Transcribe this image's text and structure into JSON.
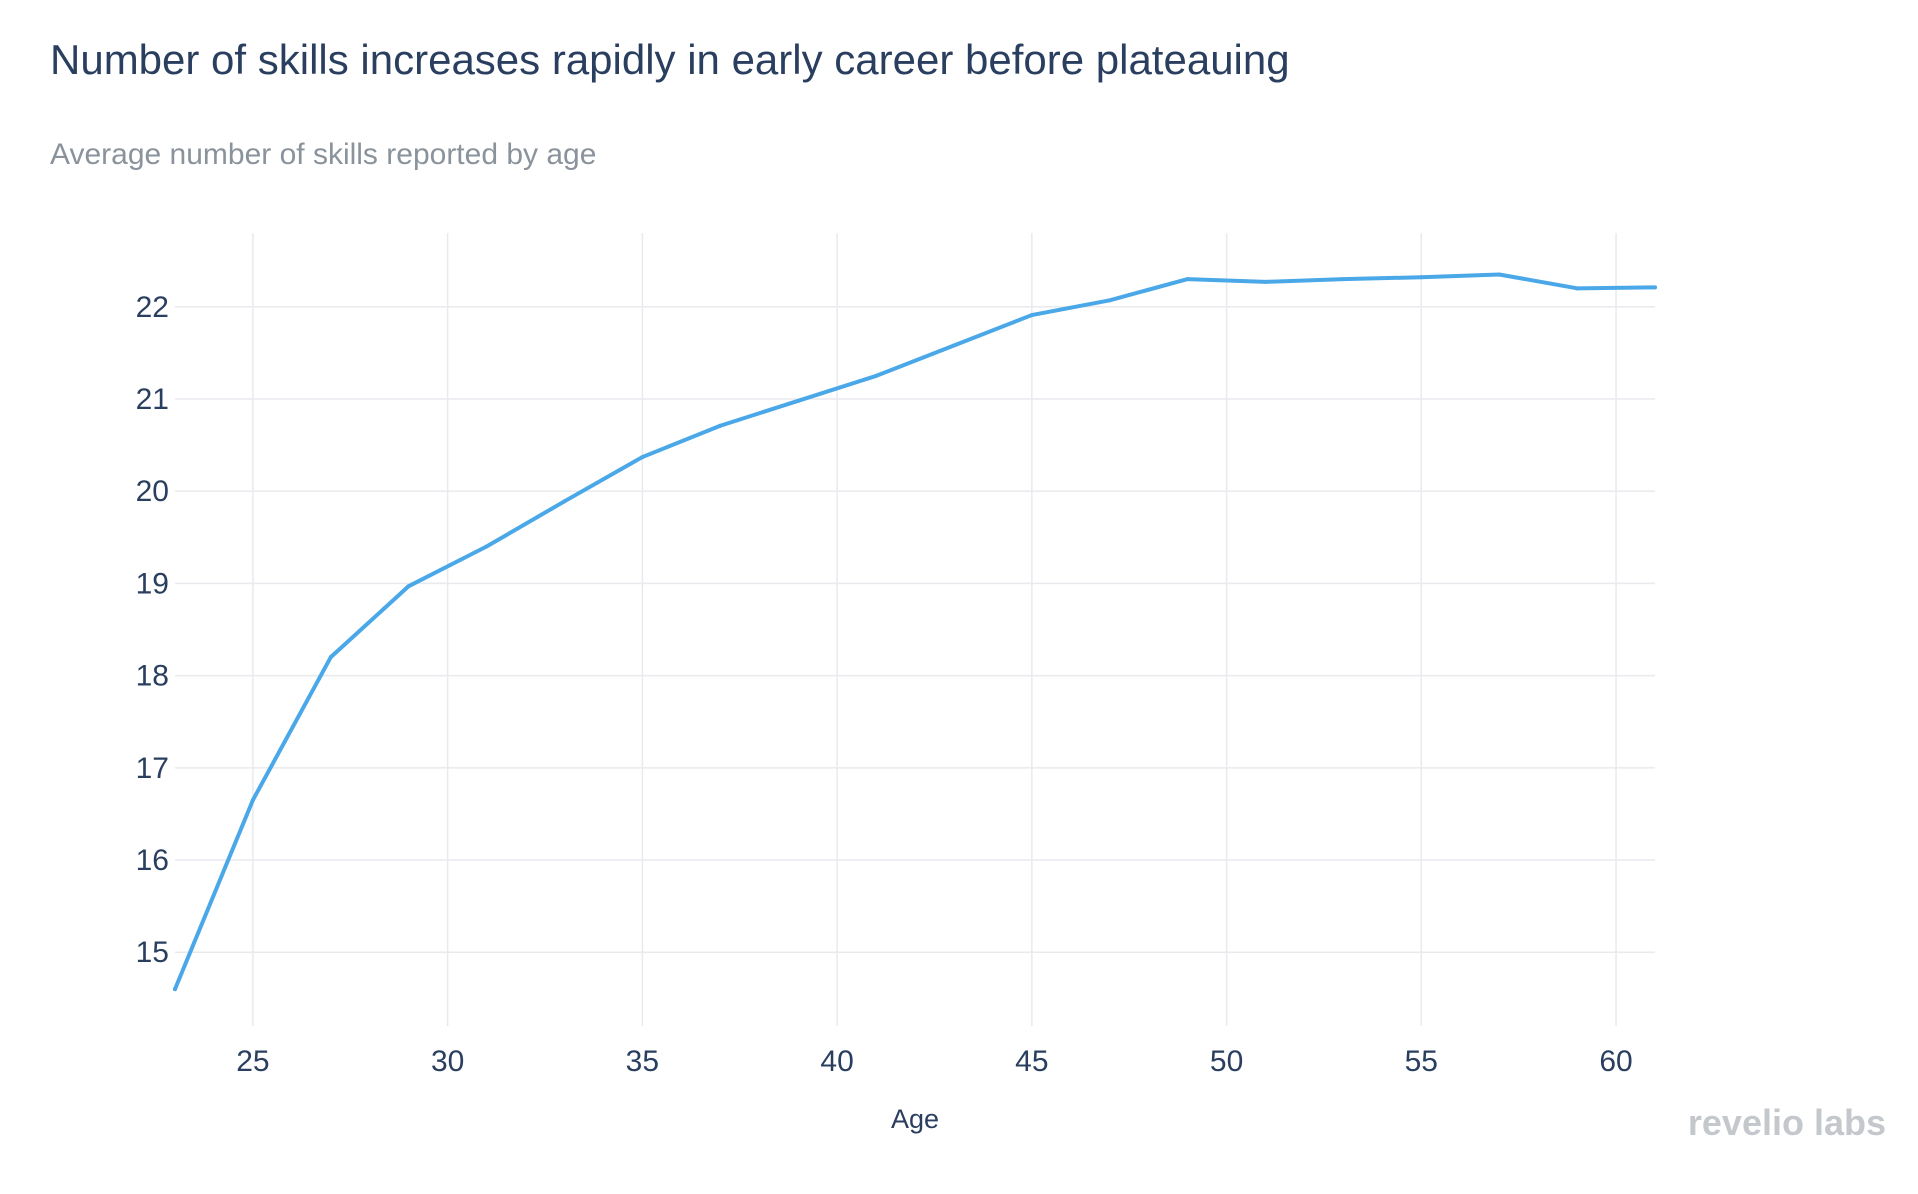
{
  "chart_data": {
    "type": "line",
    "title": "Number of skills increases rapidly in early career before plateauing",
    "subtitle": "Average number of skills reported by age",
    "xlabel": "Age",
    "ylabel": "",
    "xlim": [
      23,
      61
    ],
    "ylim": [
      14.2,
      22.8
    ],
    "x_ticks": [
      25,
      30,
      35,
      40,
      45,
      50,
      55,
      60
    ],
    "y_ticks": [
      15,
      16,
      17,
      18,
      19,
      20,
      21,
      22
    ],
    "grid": true,
    "legend": "none",
    "line_color": "#4aa8e8",
    "x": [
      23,
      25,
      27,
      29,
      31,
      33,
      35,
      37,
      39,
      41,
      43,
      45,
      47,
      49,
      51,
      53,
      55,
      57,
      59,
      61
    ],
    "series": [
      {
        "values": [
          14.6,
          16.65,
          18.2,
          18.97,
          19.4,
          19.89,
          20.37,
          20.71,
          20.98,
          21.25,
          21.58,
          21.91,
          22.07,
          22.3,
          22.27,
          22.3,
          22.32,
          22.35,
          22.2,
          22.21
        ]
      }
    ]
  },
  "branding": {
    "logo_text": "revelio labs"
  }
}
